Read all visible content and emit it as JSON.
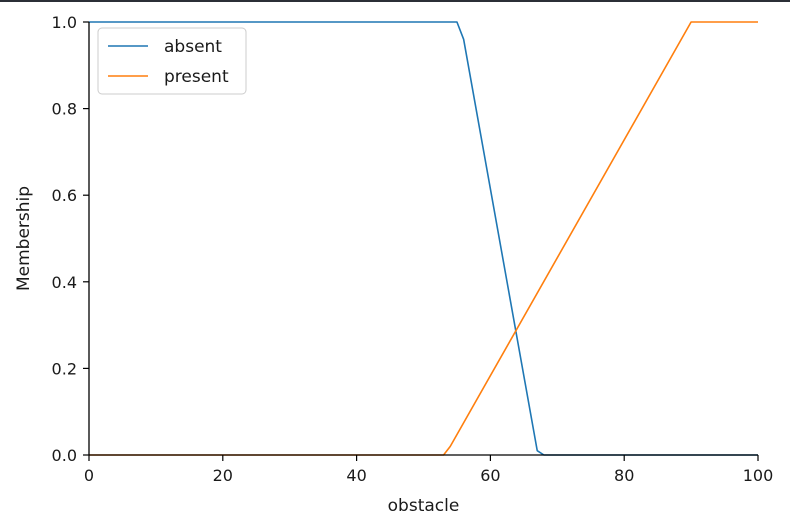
{
  "chart_data": {
    "type": "line",
    "xlabel": "obstacle",
    "ylabel": "Membership",
    "xlim": [
      0,
      100
    ],
    "ylim": [
      0,
      1
    ],
    "xticks": [
      0,
      20,
      40,
      60,
      80,
      100
    ],
    "xtick_labels": [
      "0",
      "20",
      "40",
      "60",
      "80",
      "100"
    ],
    "yticks": [
      0.0,
      0.2,
      0.4,
      0.6,
      0.8,
      1.0
    ],
    "ytick_labels": [
      "0.0",
      "0.2",
      "0.4",
      "0.6",
      "0.8",
      "1.0"
    ],
    "grid": false,
    "legend_position": "top-left",
    "series": [
      {
        "name": "absent",
        "color": "#1f77b4",
        "x": [
          0,
          55,
          56,
          67,
          68,
          100
        ],
        "y": [
          1,
          1,
          0.96,
          0.01,
          0,
          0
        ]
      },
      {
        "name": "present",
        "color": "#ff7f0e",
        "x": [
          0,
          53,
          54,
          90,
          100
        ],
        "y": [
          0,
          0,
          0.02,
          1,
          1
        ]
      }
    ]
  }
}
